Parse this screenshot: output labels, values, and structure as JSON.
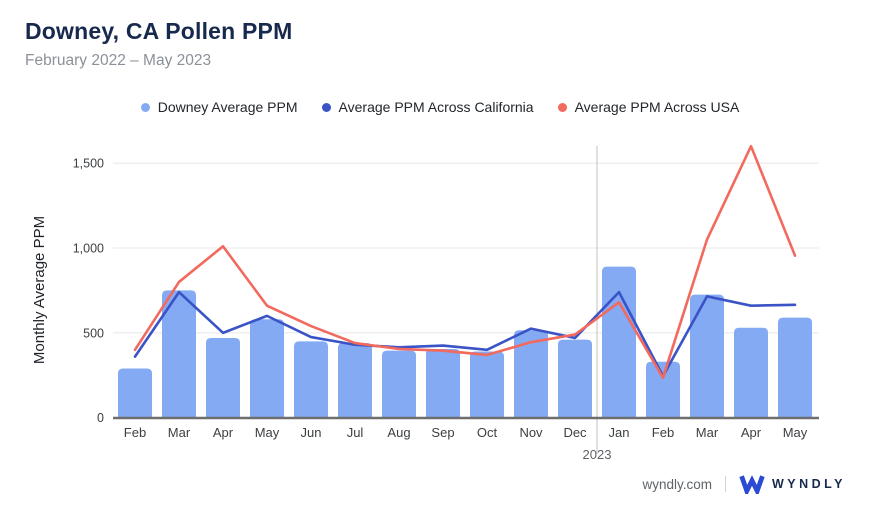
{
  "header": {
    "title": "Downey, CA Pollen PPM",
    "subtitle": "February 2022 – May 2023"
  },
  "chart_data": {
    "type": "bar",
    "title": "Downey, CA Pollen PPM",
    "subtitle": "February 2022 – May 2023",
    "ylabel": "Monthly Average PPM",
    "xlabel": "",
    "ylim": [
      0,
      1600
    ],
    "yticks": [
      0,
      500,
      1000,
      1500
    ],
    "ytick_labels": [
      "0",
      "500",
      "1,000",
      "1,500"
    ],
    "grid": true,
    "legend_position": "top",
    "categories": [
      "Feb",
      "Mar",
      "Apr",
      "May",
      "Jun",
      "Jul",
      "Aug",
      "Sep",
      "Oct",
      "Nov",
      "Dec",
      "Jan",
      "Feb",
      "Mar",
      "Apr",
      "May"
    ],
    "year_divider": {
      "label": "2023",
      "before_index": 11
    },
    "series": [
      {
        "id": "downey",
        "name": "Downey Average PPM",
        "render": "bar",
        "color": "#83aaf3",
        "values": [
          290,
          750,
          470,
          580,
          450,
          440,
          395,
          405,
          390,
          515,
          460,
          890,
          330,
          725,
          530,
          590
        ]
      },
      {
        "id": "california",
        "name": "Average PPM Across California",
        "render": "line",
        "color": "#3a53c6",
        "values": [
          360,
          740,
          500,
          600,
          475,
          430,
          415,
          425,
          400,
          525,
          470,
          740,
          245,
          715,
          660,
          665
        ]
      },
      {
        "id": "usa",
        "name": "Average PPM Across USA",
        "render": "line",
        "color": "#f2695e",
        "values": [
          400,
          800,
          1010,
          660,
          540,
          440,
          405,
          395,
          370,
          445,
          490,
          680,
          235,
          1050,
          1600,
          955
        ]
      }
    ]
  },
  "footer": {
    "site": "wyndly.com",
    "brand": "WYNDLY"
  },
  "colors": {
    "title_navy": "#17294d",
    "logo_blue": "#2b4ad1",
    "axis_gray": "#6e6e6e",
    "grid_gray": "#e8e8e8"
  }
}
